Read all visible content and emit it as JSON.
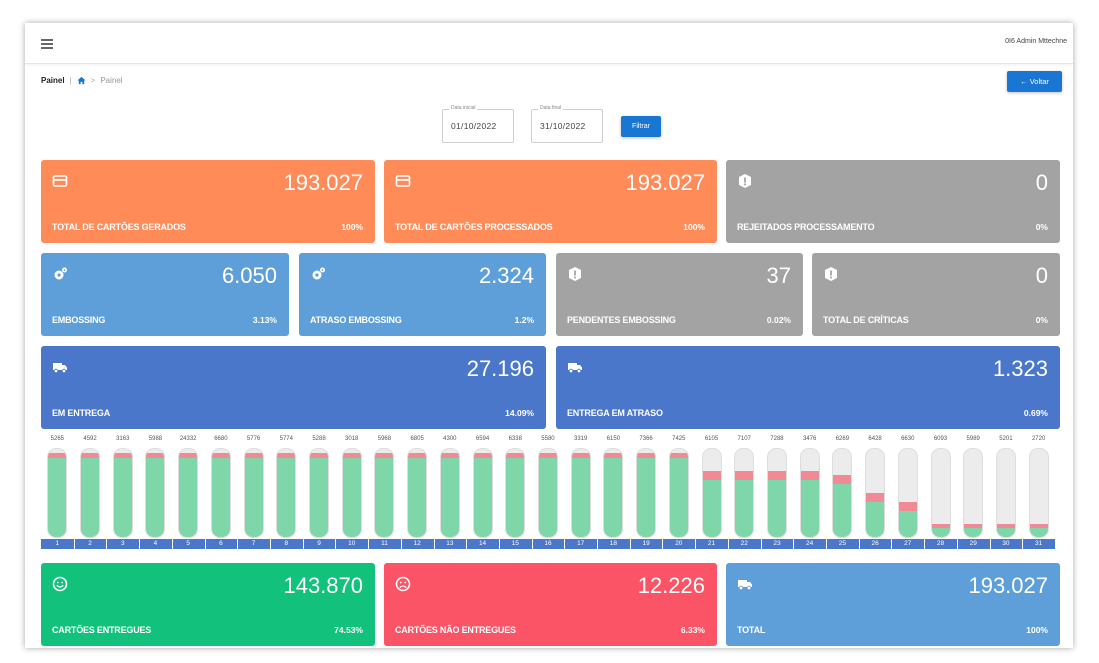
{
  "header": {
    "user": "0I6 Admin Mttechne"
  },
  "breadcrumb": {
    "root": "Painel",
    "current": "Painel"
  },
  "back_button": "← Voltar",
  "filters": {
    "start_label": "Data inicial",
    "start_value": "01/10/2022",
    "end_label": "Data final",
    "end_value": "31/10/2022",
    "button": "Filtrar"
  },
  "cards": {
    "gerados": {
      "value": "193.027",
      "title": "TOTAL DE CARTÕES GERADOS",
      "pct": "100%",
      "icon": "credit-card-icon"
    },
    "processados": {
      "value": "193.027",
      "title": "TOTAL DE CARTÕES PROCESSADOS",
      "pct": "100%",
      "icon": "credit-card-icon"
    },
    "rejeitados": {
      "value": "0",
      "title": "REJEITADOS PROCESSAMENTO",
      "pct": "0%",
      "icon": "alert-icon"
    },
    "embossing": {
      "value": "6.050",
      "title": "EMBOSSING",
      "pct": "3.13%",
      "icon": "gears-icon"
    },
    "atraso_embossing": {
      "value": "2.324",
      "title": "ATRASO EMBOSSING",
      "pct": "1.2%",
      "icon": "gears-icon"
    },
    "pendentes": {
      "value": "37",
      "title": "PENDENTES EMBOSSING",
      "pct": "0.02%",
      "icon": "alert-icon"
    },
    "criticas": {
      "value": "0",
      "title": "TOTAL DE CRÍTICAS",
      "pct": "0%",
      "icon": "alert-icon"
    },
    "em_entrega": {
      "value": "27.196",
      "title": "EM ENTREGA",
      "pct": "14.09%",
      "icon": "truck-icon"
    },
    "entrega_atraso": {
      "value": "1.323",
      "title": "ENTREGA EM ATRASO",
      "pct": "0.69%",
      "icon": "truck-icon"
    },
    "entregues": {
      "value": "143.870",
      "title": "CARTÕES ENTREGUES",
      "pct": "74.53%",
      "icon": "smile-icon"
    },
    "nao_entregues": {
      "value": "12.226",
      "title": "CARTÕES NÃO ENTREGUES",
      "pct": "6.33%",
      "icon": "sad-icon"
    },
    "total": {
      "value": "193.027",
      "title": "TOTAL",
      "pct": "100%",
      "icon": "truck-icon"
    }
  },
  "colors": {
    "orange": "#ff8b59",
    "gray": "#a3a3a3",
    "light_blue": "#5f9fd9",
    "dark_blue": "#4a77c9",
    "green": "#12c27c",
    "red": "#fb5466",
    "primary": "#1976d2"
  },
  "chart_data": {
    "type": "bar",
    "categories": [
      "1",
      "2",
      "3",
      "4",
      "5",
      "6",
      "7",
      "8",
      "9",
      "10",
      "11",
      "12",
      "13",
      "14",
      "15",
      "16",
      "17",
      "18",
      "19",
      "20",
      "21",
      "22",
      "23",
      "24",
      "25",
      "26",
      "27",
      "28",
      "29",
      "30",
      "31"
    ],
    "totals": [
      "5265",
      "4592",
      "3163",
      "5988",
      "24332",
      "6680",
      "5776",
      "5774",
      "5288",
      "3018",
      "5968",
      "6805",
      "4300",
      "6594",
      "6338",
      "5580",
      "3319",
      "6150",
      "7366",
      "7425",
      "6105",
      "7107",
      "7288",
      "3476",
      "6269",
      "6428",
      "6630",
      "6093",
      "5989",
      "5201",
      "2720"
    ],
    "series": [
      {
        "name": "",
        "values": [
          0.9,
          0.9,
          0.9,
          0.9,
          0.9,
          0.9,
          0.9,
          0.9,
          0.9,
          0.9,
          0.9,
          0.9,
          0.9,
          0.9,
          0.9,
          0.9,
          0.9,
          0.9,
          0.9,
          0.9,
          0.65,
          0.65,
          0.65,
          0.65,
          0.6,
          0.4,
          0.3,
          0.1,
          0.1,
          0.1,
          0.1
        ]
      },
      {
        "name": "",
        "values": [
          0.05,
          0.05,
          0.05,
          0.05,
          0.05,
          0.05,
          0.05,
          0.05,
          0.05,
          0.05,
          0.05,
          0.05,
          0.05,
          0.05,
          0.05,
          0.05,
          0.05,
          0.05,
          0.05,
          0.05,
          0.1,
          0.1,
          0.1,
          0.1,
          0.1,
          0.1,
          0.1,
          0.05,
          0.05,
          0.05,
          0.05
        ]
      }
    ]
  }
}
